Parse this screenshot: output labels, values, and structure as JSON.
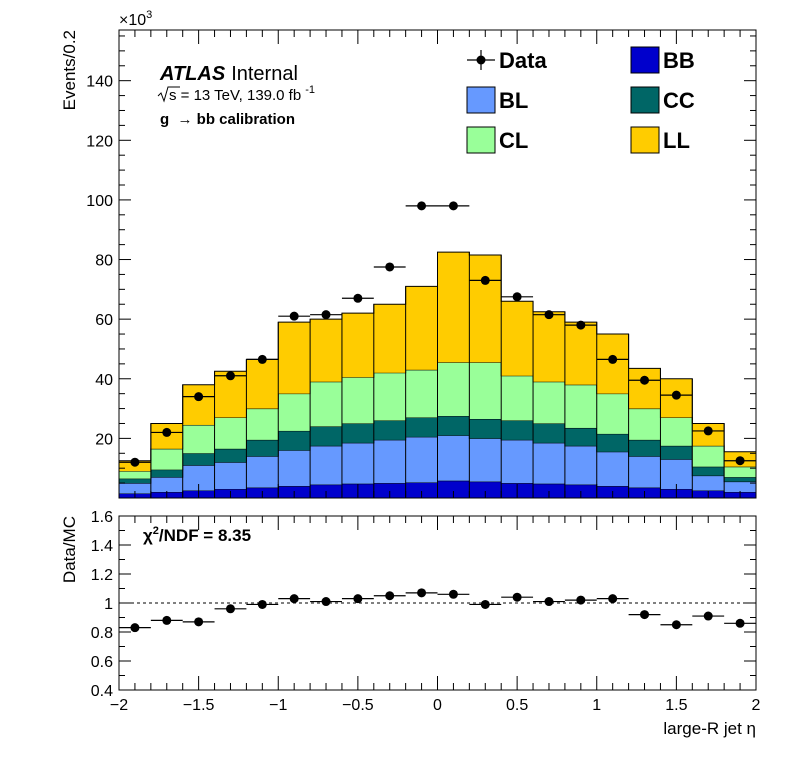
{
  "chart_data": [
    {
      "type": "bar",
      "stacked": true,
      "x_bin_edges": [
        -2.0,
        -1.8,
        -1.6,
        -1.4,
        -1.2,
        -1.0,
        -0.8,
        -0.6,
        -0.4,
        -0.2,
        0.0,
        0.2,
        0.4,
        0.6,
        0.8,
        1.0,
        1.2,
        1.4,
        1.6,
        1.8,
        2.0
      ],
      "series": [
        {
          "name": "BB",
          "color": "#0000cc",
          "values": [
            1.5,
            2.0,
            2.5,
            3.0,
            3.5,
            4.0,
            4.5,
            4.8,
            5.0,
            5.2,
            5.8,
            5.5,
            5.0,
            4.8,
            4.5,
            4.0,
            3.5,
            3.0,
            2.5,
            2.0
          ]
        },
        {
          "name": "BL",
          "color": "#6699ff",
          "values": [
            3.5,
            5.0,
            8.5,
            9.0,
            10.5,
            12.0,
            13.0,
            13.7,
            14.5,
            15.3,
            15.2,
            14.5,
            14.5,
            13.7,
            13.0,
            11.5,
            10.5,
            10.0,
            5.0,
            3.5
          ]
        },
        {
          "name": "CC",
          "color": "#006666",
          "values": [
            1.5,
            2.5,
            4.0,
            4.5,
            5.5,
            6.5,
            6.5,
            6.5,
            6.5,
            6.5,
            6.5,
            6.5,
            6.5,
            6.5,
            6.0,
            6.0,
            5.5,
            4.5,
            3.0,
            1.5
          ]
        },
        {
          "name": "CL",
          "color": "#99ff99",
          "values": [
            2.5,
            7.0,
            9.5,
            10.5,
            10.5,
            12.5,
            15.0,
            15.5,
            16.0,
            16.0,
            18.0,
            19.0,
            15.0,
            14.0,
            14.5,
            13.5,
            10.5,
            9.5,
            7.0,
            3.5
          ]
        },
        {
          "name": "LL",
          "color": "#ffcc00",
          "values": [
            3.5,
            8.5,
            13.5,
            15.5,
            16.5,
            24.0,
            21.0,
            21.5,
            23.0,
            28.0,
            37.0,
            36.0,
            25.0,
            23.5,
            21.0,
            20.0,
            13.5,
            13.0,
            7.5,
            5.0
          ]
        }
      ],
      "data": {
        "name": "Data",
        "x": [
          -1.9,
          -1.7,
          -1.5,
          -1.3,
          -1.1,
          -0.9,
          -0.7,
          -0.5,
          -0.3,
          -0.1,
          0.1,
          0.3,
          0.5,
          0.7,
          0.9,
          1.1,
          1.3,
          1.5,
          1.7,
          1.9
        ],
        "y": [
          12.0,
          22.0,
          34.0,
          41.0,
          46.5,
          61.0,
          61.5,
          67.0,
          77.5,
          98.0,
          98.0,
          73.0,
          67.5,
          61.5,
          58.0,
          46.5,
          39.5,
          34.5,
          22.5,
          12.5
        ]
      },
      "ylabel": "Events/0.2",
      "y_multiplier": "×10",
      "y_multiplier_exp": "3",
      "ylim": [
        0,
        157
      ],
      "yticks": [
        20,
        40,
        60,
        80,
        100,
        120,
        140
      ],
      "xlim": [
        -2,
        2
      ]
    },
    {
      "type": "scatter",
      "x": [
        -1.9,
        -1.7,
        -1.5,
        -1.3,
        -1.1,
        -0.9,
        -0.7,
        -0.5,
        -0.3,
        -0.1,
        0.1,
        0.3,
        0.5,
        0.7,
        0.9,
        1.1,
        1.3,
        1.5,
        1.7,
        1.9
      ],
      "y": [
        0.83,
        0.88,
        0.87,
        0.96,
        0.99,
        1.03,
        1.01,
        1.03,
        1.05,
        1.07,
        1.06,
        0.99,
        1.04,
        1.01,
        1.02,
        1.03,
        0.92,
        0.85,
        0.91,
        0.86
      ],
      "ylabel": "Data/MC",
      "xlabel": "large-R jet η",
      "ylim": [
        0.4,
        1.6
      ],
      "yticks": [
        "0.4",
        "0.6",
        "0.8",
        "1",
        "1.2",
        "1.4",
        "1.6"
      ],
      "xlim": [
        -2,
        2
      ],
      "xticks": [
        "−2",
        "−1.5",
        "−1",
        "−0.5",
        "0",
        "0.5",
        "1",
        "1.5",
        "2"
      ],
      "reference_line": 1.0,
      "annotation_chi_prefix": "χ",
      "annotation_chi_exp": "2",
      "annotation_chi_suffix": "/NDF = 8.35"
    }
  ],
  "labels": {
    "atlas": "ATLAS",
    "internal": "Internal",
    "sqrt_s": "s = 13 TeV, 139.0 fb",
    "lumi_exp": "-1",
    "calibration": "g  → bb calibration"
  },
  "legend": [
    {
      "name": "Data",
      "kind": "marker"
    },
    {
      "name": "BB",
      "kind": "box",
      "color": "#0000cc"
    },
    {
      "name": "BL",
      "kind": "box",
      "color": "#6699ff"
    },
    {
      "name": "CC",
      "kind": "box",
      "color": "#006666"
    },
    {
      "name": "CL",
      "kind": "box",
      "color": "#99ff99"
    },
    {
      "name": "LL",
      "kind": "box",
      "color": "#ffcc00"
    }
  ]
}
